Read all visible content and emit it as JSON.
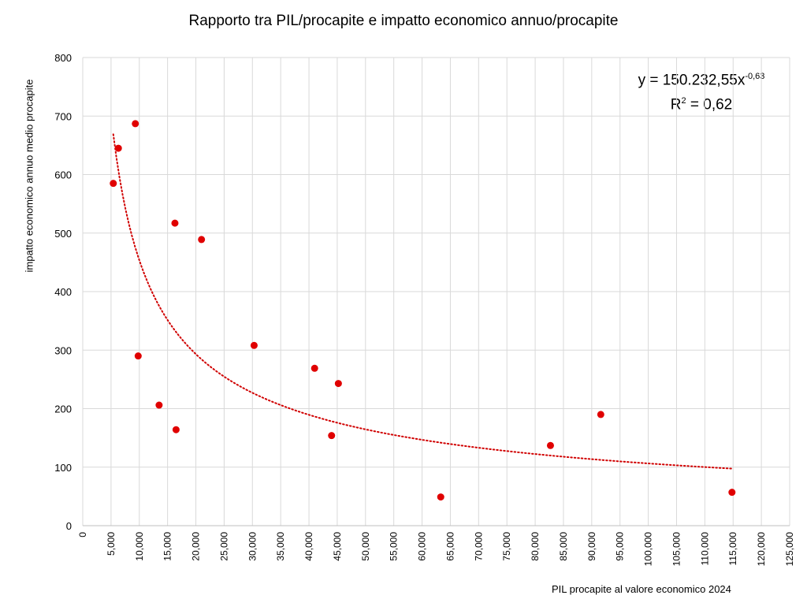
{
  "chart_data": {
    "type": "scatter",
    "title": "Rapporto tra PIL/procapite e impatto economico annuo/procapite",
    "xlabel": "PIL procapite al valore economico 2024",
    "ylabel": "impatto economico annuo  medio procapite",
    "xlim": [
      0,
      125000
    ],
    "ylim": [
      0,
      800
    ],
    "x_ticks": [
      "0",
      "5,000",
      "10,000",
      "15,000",
      "20,000",
      "25,000",
      "30,000",
      "35,000",
      "40,000",
      "45,000",
      "50,000",
      "55,000",
      "60,000",
      "65,000",
      "70,000",
      "75,000",
      "80,000",
      "85,000",
      "90,000",
      "95,000",
      "100,000",
      "105,000",
      "110,000",
      "115,000",
      "120,000",
      "125,000"
    ],
    "y_ticks": [
      "0",
      "100",
      "200",
      "300",
      "400",
      "500",
      "600",
      "700",
      "800"
    ],
    "grid": true,
    "marker_color": "#e00000",
    "series": [
      {
        "points": [
          {
            "x": 5400,
            "y": 585
          },
          {
            "x": 6300,
            "y": 645
          },
          {
            "x": 9300,
            "y": 687
          },
          {
            "x": 9800,
            "y": 290
          },
          {
            "x": 13500,
            "y": 206
          },
          {
            "x": 16300,
            "y": 517
          },
          {
            "x": 16500,
            "y": 164
          },
          {
            "x": 21000,
            "y": 489
          },
          {
            "x": 30300,
            "y": 308
          },
          {
            "x": 41000,
            "y": 269
          },
          {
            "x": 44000,
            "y": 154
          },
          {
            "x": 45200,
            "y": 243
          },
          {
            "x": 63300,
            "y": 49
          },
          {
            "x": 82700,
            "y": 137
          },
          {
            "x": 91600,
            "y": 190
          },
          {
            "x": 114800,
            "y": 57
          }
        ]
      }
    ],
    "trendline": {
      "type": "power",
      "a": 150232.55,
      "b": -0.63,
      "x_range": [
        5400,
        114800
      ],
      "style": "dotted",
      "color": "#d00000",
      "equation_label": "y = 150.232,55x",
      "equation_exponent": "-0,63",
      "r2_label": "R",
      "r2_exponent": "2",
      "r2_value": " = 0,62"
    }
  }
}
